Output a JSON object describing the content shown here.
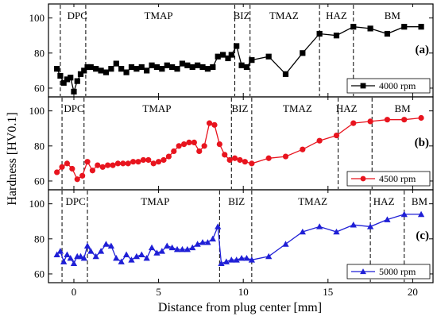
{
  "figure": {
    "ylabel": "Hardness [HV0.1]",
    "xlabel": "Distance from plug center [mm]",
    "x_ticks": [
      0,
      5,
      10,
      15,
      20
    ]
  },
  "chart_data": [
    {
      "type": "line",
      "panel_label": "(a)",
      "legend": "4000 rpm",
      "color": "#000000",
      "marker": "square",
      "xlim": [
        -1.5,
        21.2
      ],
      "ylim": [
        55,
        108
      ],
      "y_ticks": [
        60,
        80,
        100
      ],
      "zones": [
        {
          "name": "DPC",
          "x": 0.2
        },
        {
          "name": "TMAP",
          "x": 5.0
        },
        {
          "name": "BIZ",
          "x": 9.9
        },
        {
          "name": "TMAZ",
          "x": 12.4
        },
        {
          "name": "HAZ",
          "x": 15.5
        },
        {
          "name": "BM",
          "x": 18.8
        }
      ],
      "boundaries": [
        -0.8,
        0.7,
        9.5,
        10.4,
        14.5,
        16.5
      ],
      "x": [
        -1.0,
        -0.8,
        -0.6,
        -0.4,
        -0.2,
        0.0,
        0.2,
        0.4,
        0.6,
        0.8,
        1.0,
        1.3,
        1.6,
        1.9,
        2.2,
        2.5,
        2.8,
        3.1,
        3.4,
        3.7,
        4.0,
        4.3,
        4.6,
        4.9,
        5.2,
        5.5,
        5.8,
        6.1,
        6.4,
        6.7,
        7.0,
        7.3,
        7.6,
        7.9,
        8.2,
        8.5,
        8.8,
        9.1,
        9.3,
        9.6,
        9.9,
        10.2,
        10.5,
        11.5,
        12.5,
        13.5,
        14.5,
        15.5,
        16.5,
        17.5,
        18.5,
        19.5,
        20.5
      ],
      "values": [
        71,
        67,
        63,
        65,
        66,
        58,
        64,
        68,
        70,
        72,
        72,
        71,
        70,
        69,
        71,
        74,
        71,
        69,
        72,
        71,
        72,
        70,
        73,
        72,
        71,
        73,
        72,
        71,
        74,
        73,
        72,
        73,
        72,
        71,
        72,
        78,
        79,
        77,
        79,
        84,
        73,
        72,
        76,
        78,
        68,
        80,
        91,
        90,
        95,
        94,
        91,
        95,
        95
      ]
    },
    {
      "type": "line",
      "panel_label": "(b)",
      "legend": "4500 rpm",
      "color": "#e8141e",
      "marker": "circle",
      "xlim": [
        -1.5,
        21.2
      ],
      "ylim": [
        55,
        108
      ],
      "y_ticks": [
        60,
        80,
        100
      ],
      "zones": [
        {
          "name": "DPC",
          "x": 0.0
        },
        {
          "name": "TMAP",
          "x": 4.9
        },
        {
          "name": "BIZ",
          "x": 9.8
        },
        {
          "name": "TMAZ",
          "x": 13.2
        },
        {
          "name": "HAZ",
          "x": 16.1
        },
        {
          "name": "BM",
          "x": 19.4
        }
      ],
      "boundaries": [
        -0.7,
        0.6,
        9.3,
        10.5,
        15.6,
        17.6
      ],
      "x": [
        -1.0,
        -0.7,
        -0.4,
        -0.1,
        0.2,
        0.5,
        0.8,
        1.1,
        1.4,
        1.7,
        2.0,
        2.3,
        2.6,
        2.9,
        3.2,
        3.5,
        3.8,
        4.1,
        4.4,
        4.7,
        5.0,
        5.3,
        5.6,
        5.9,
        6.2,
        6.5,
        6.8,
        7.1,
        7.4,
        7.7,
        8.0,
        8.3,
        8.6,
        8.9,
        9.2,
        9.5,
        9.8,
        10.1,
        10.5,
        11.5,
        12.5,
        13.5,
        14.5,
        15.5,
        16.5,
        17.5,
        18.5,
        19.5,
        20.5
      ],
      "values": [
        65,
        68,
        70,
        67,
        61,
        63,
        71,
        66,
        69,
        68,
        69,
        69,
        70,
        70,
        70,
        71,
        71,
        72,
        72,
        70,
        71,
        72,
        74,
        77,
        80,
        81,
        82,
        82,
        77,
        80,
        93,
        92,
        81,
        75,
        72,
        73,
        72,
        71,
        70,
        73,
        74,
        78,
        83,
        86,
        93,
        94,
        95,
        95,
        96
      ]
    },
    {
      "type": "line",
      "panel_label": "(c)",
      "legend": "5000 rpm",
      "color": "#1f1fd6",
      "marker": "triangle",
      "xlim": [
        -1.5,
        21.2
      ],
      "ylim": [
        55,
        108
      ],
      "y_ticks": [
        60,
        80,
        100
      ],
      "zones": [
        {
          "name": "DPC",
          "x": 0.1
        },
        {
          "name": "TMAP",
          "x": 4.8
        },
        {
          "name": "BIZ",
          "x": 9.6
        },
        {
          "name": "TMAZ",
          "x": 14.1
        },
        {
          "name": "HAZ",
          "x": 18.3
        },
        {
          "name": "BM",
          "x": 20.4
        }
      ],
      "boundaries": [
        -0.7,
        0.8,
        8.6,
        10.5,
        17.5,
        19.5
      ],
      "x": [
        -1.0,
        -0.8,
        -0.6,
        -0.4,
        -0.2,
        0.0,
        0.2,
        0.4,
        0.6,
        0.8,
        1.0,
        1.3,
        1.6,
        1.9,
        2.2,
        2.5,
        2.8,
        3.1,
        3.4,
        3.7,
        4.0,
        4.3,
        4.6,
        4.9,
        5.2,
        5.5,
        5.8,
        6.1,
        6.4,
        6.7,
        7.0,
        7.3,
        7.6,
        7.9,
        8.2,
        8.5,
        8.7,
        9.0,
        9.3,
        9.6,
        9.9,
        10.2,
        10.5,
        11.5,
        12.5,
        13.5,
        14.5,
        15.5,
        16.5,
        17.5,
        18.5,
        19.5,
        20.5
      ],
      "values": [
        71,
        73,
        67,
        71,
        69,
        66,
        70,
        70,
        69,
        76,
        73,
        70,
        73,
        77,
        76,
        69,
        67,
        71,
        68,
        70,
        71,
        69,
        75,
        72,
        73,
        76,
        75,
        74,
        74,
        74,
        75,
        77,
        78,
        78,
        80,
        87,
        66,
        67,
        68,
        68,
        69,
        69,
        68,
        70,
        77,
        84,
        87,
        84,
        88,
        87,
        91,
        94,
        94
      ]
    }
  ]
}
